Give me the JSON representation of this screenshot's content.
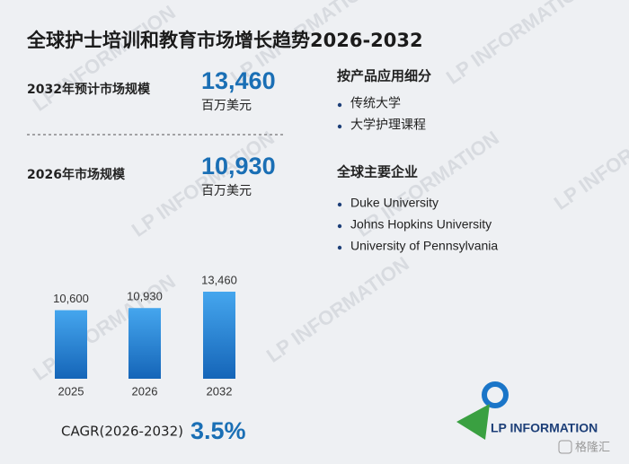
{
  "title": "全球护士培训和教育市场增长趋势2026-2032",
  "stats": [
    {
      "label": "2032年预计市场规模",
      "value": "13,460",
      "unit": "百万美元"
    },
    {
      "label": "2026年市场规模",
      "value": "10,930",
      "unit": "百万美元"
    }
  ],
  "sections": [
    {
      "heading": "按产品应用细分",
      "items": [
        "传统大学",
        "大学护理课程"
      ]
    },
    {
      "heading": "全球主要企业",
      "items": [
        "Duke University",
        "Johns Hopkins University",
        "University of Pennsylvania"
      ]
    }
  ],
  "chart_data": {
    "type": "bar",
    "categories": [
      "2025",
      "2026",
      "2032"
    ],
    "values": [
      10600,
      10930,
      13460
    ],
    "value_labels": [
      "10,600",
      "10,930",
      "13,460"
    ],
    "color": "#1f7fd4"
  },
  "cagr": {
    "label": "CAGR(2026-2032)",
    "value": "3.5%"
  },
  "logo": "LP INFORMATION",
  "watermark": "LP INFORMATION",
  "source_mark": "格隆汇"
}
